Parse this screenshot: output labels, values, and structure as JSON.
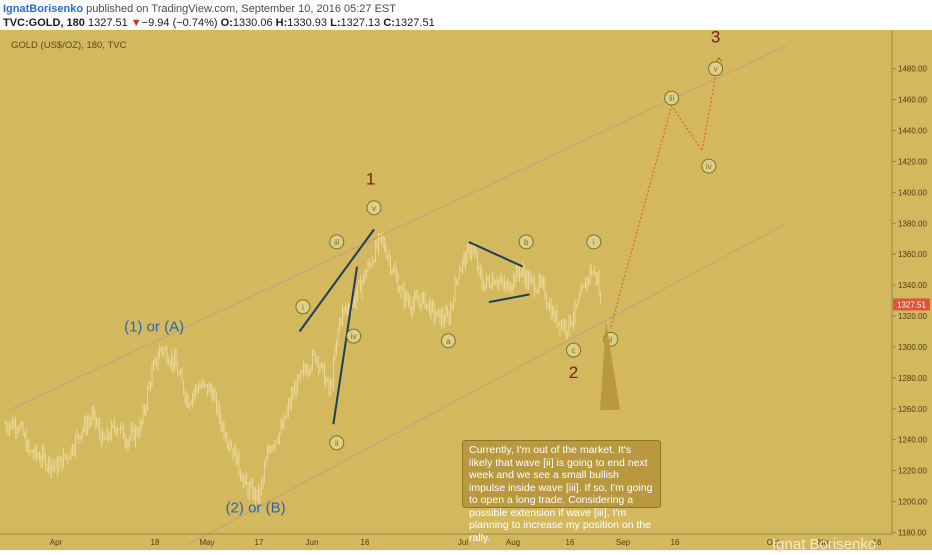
{
  "header": {
    "author": "IgnatBorisenko",
    "published": "published on TradingView.com, September 10, 2016 05:27 EST",
    "symbol": "TVC:GOLD, 180",
    "last": "1327.51",
    "change_arrow": "▼",
    "change": "−9.94 (−0.74%)",
    "o_label": "O:",
    "o": "1330.06",
    "h_label": "H:",
    "h": "1330.93",
    "l_label": "L:",
    "l": "1327.13",
    "c_label": "C:",
    "c": "1327.51"
  },
  "chart_title": "GOLD (US$/OZ), 180, TVC",
  "annotation": "Currently, I'm out of the market. It's likely that wave [ii] is going to end next week and we see a small bullish impulse inside wave [iii]. If so, I'm going to open a long trade. Considering a possible extension if wave [iii], I'm planning to increase my position on the rally.",
  "signature": "Ignat Borisenko",
  "colors": {
    "background": "#d4b85e",
    "candle": "#f4e4b0",
    "wave_label": "#6b7a2a",
    "major_label": "#7a1f12",
    "abc_label": "#2a64b0",
    "trendline": "#1f3e5a",
    "channel": "#c0a080",
    "projection": "#e0533a",
    "price_badge": "#e0533a"
  },
  "chart_data": {
    "type": "candlestick",
    "y_axis": {
      "ticks": [
        1180,
        1200,
        1220,
        1240,
        1260,
        1280,
        1300,
        1320,
        1340,
        1360,
        1380,
        1400,
        1420,
        1440,
        1460,
        1480
      ],
      "range": [
        1172,
        1495
      ]
    },
    "x_axis": {
      "ticks": [
        "Apr",
        "18",
        "May",
        "17",
        "Jun",
        "16",
        "Jul",
        "Aug",
        "16",
        "Sep",
        "16",
        "Oct",
        "Nov",
        "16",
        "Dec"
      ]
    },
    "last_price": "1327.51",
    "close_path": [
      [
        "2016-03-21",
        1250
      ],
      [
        "2016-03-24",
        1232
      ],
      [
        "2016-03-28",
        1228
      ],
      [
        "2016-04-01",
        1222
      ],
      [
        "2016-04-05",
        1232
      ],
      [
        "2016-04-08",
        1245
      ],
      [
        "2016-04-12",
        1255
      ],
      [
        "2016-04-15",
        1238
      ],
      [
        "2016-04-19",
        1250
      ],
      [
        "2016-04-22",
        1240
      ],
      [
        "2016-04-26",
        1248
      ],
      [
        "2016-04-29",
        1280
      ],
      [
        "2016-05-02",
        1300
      ],
      [
        "2016-05-06",
        1290
      ],
      [
        "2016-05-10",
        1265
      ],
      [
        "2016-05-13",
        1275
      ],
      [
        "2016-05-17",
        1272
      ],
      [
        "2016-05-20",
        1250
      ],
      [
        "2016-05-24",
        1230
      ],
      [
        "2016-05-27",
        1210
      ],
      [
        "2016-05-31",
        1202
      ],
      [
        "2016-06-03",
        1235
      ],
      [
        "2016-06-07",
        1248
      ],
      [
        "2016-06-10",
        1270
      ],
      [
        "2016-06-14",
        1287
      ],
      [
        "2016-06-17",
        1295
      ],
      [
        "2016-06-21",
        1270
      ],
      [
        "2016-06-24",
        1320
      ],
      [
        "2016-06-28",
        1330
      ],
      [
        "2016-07-01",
        1345
      ],
      [
        "2016-07-06",
        1370
      ],
      [
        "2016-07-08",
        1360
      ],
      [
        "2016-07-12",
        1335
      ],
      [
        "2016-07-15",
        1328
      ],
      [
        "2016-07-19",
        1330
      ],
      [
        "2016-07-22",
        1320
      ],
      [
        "2016-07-26",
        1318
      ],
      [
        "2016-07-29",
        1350
      ],
      [
        "2016-08-02",
        1365
      ],
      [
        "2016-08-05",
        1340
      ],
      [
        "2016-08-09",
        1345
      ],
      [
        "2016-08-12",
        1338
      ],
      [
        "2016-08-16",
        1350
      ],
      [
        "2016-08-19",
        1342
      ],
      [
        "2016-08-23",
        1338
      ],
      [
        "2016-08-26",
        1320
      ],
      [
        "2016-08-30",
        1313
      ],
      [
        "2016-09-02",
        1325
      ],
      [
        "2016-09-06",
        1350
      ],
      [
        "2016-09-08",
        1345
      ],
      [
        "2016-09-09",
        1327.51
      ]
    ],
    "channel_lines": [
      {
        "name": "upper",
        "from": [
          "2016-03-17",
          1258
        ],
        "to": [
          "2016-11-03",
          1495
        ]
      },
      {
        "name": "lower",
        "from": [
          "2016-05-10",
          1172
        ],
        "to": [
          "2016-11-03",
          1380
        ]
      }
    ],
    "trend_lines": [
      {
        "from": [
          "2016-06-12",
          1310
        ],
        "to": [
          "2016-07-04",
          1376
        ]
      },
      {
        "from": [
          "2016-06-22",
          1250
        ],
        "to": [
          "2016-06-29",
          1352
        ]
      },
      {
        "from": [
          "2016-08-01",
          1368
        ],
        "to": [
          "2016-08-17",
          1352
        ]
      },
      {
        "from": [
          "2016-08-07",
          1329
        ],
        "to": [
          "2016-08-19",
          1334
        ]
      }
    ],
    "projection": [
      [
        "2016-09-12",
        1313
      ],
      [
        "2016-09-30",
        1456
      ],
      [
        "2016-10-09",
        1427
      ],
      [
        "2016-10-14",
        1487
      ]
    ],
    "wave_labels": [
      {
        "text": "i",
        "at": [
          "2016-06-13",
          1326
        ]
      },
      {
        "text": "ii",
        "at": [
          "2016-06-23",
          1238
        ]
      },
      {
        "text": "iii",
        "at": [
          "2016-06-23",
          1368
        ]
      },
      {
        "text": "iv",
        "at": [
          "2016-06-28",
          1307
        ]
      },
      {
        "text": "v",
        "at": [
          "2016-07-04",
          1390
        ]
      },
      {
        "text": "a",
        "at": [
          "2016-07-26",
          1304
        ]
      },
      {
        "text": "b",
        "at": [
          "2016-08-18",
          1368
        ]
      },
      {
        "text": "c",
        "at": [
          "2016-09-01",
          1298
        ]
      },
      {
        "text": "i",
        "at": [
          "2016-09-07",
          1368
        ]
      },
      {
        "text": "ii",
        "at": [
          "2016-09-12",
          1305
        ]
      },
      {
        "text": "iii",
        "at": [
          "2016-09-30",
          1461
        ]
      },
      {
        "text": "iv",
        "at": [
          "2016-10-11",
          1417
        ]
      },
      {
        "text": "v",
        "at": [
          "2016-10-13",
          1480
        ]
      }
    ],
    "major_labels": [
      {
        "text": "1",
        "at": [
          "2016-07-03",
          1405
        ]
      },
      {
        "text": "2",
        "at": [
          "2016-09-01",
          1280
        ]
      },
      {
        "text": "3",
        "at": [
          "2016-10-13",
          1497
        ]
      }
    ],
    "abc_labels": [
      {
        "text": "(1) or (A)",
        "at": [
          "2016-04-30",
          1310
        ]
      },
      {
        "text": "(2) or (B)",
        "at": [
          "2016-05-30",
          1193
        ]
      }
    ]
  }
}
